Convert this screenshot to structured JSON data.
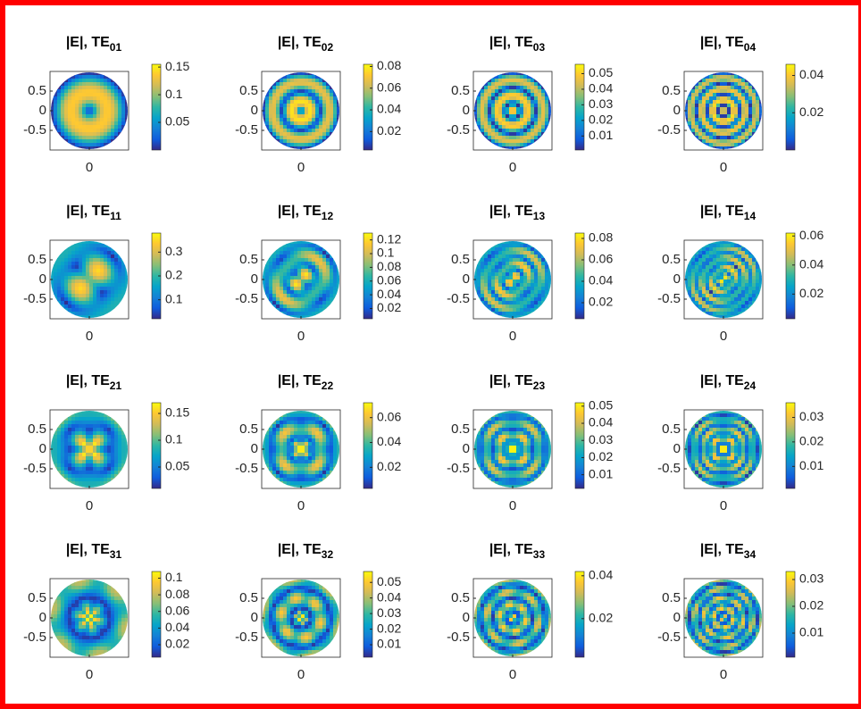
{
  "chart_data": [
    {
      "type": "heatmap",
      "title": "|E|, TE",
      "subscript": "01",
      "xlim": [
        -1,
        1
      ],
      "ylim": [
        -1,
        1
      ],
      "xticks": [
        0
      ],
      "yticks": [
        -0.5,
        0,
        0.5
      ],
      "clim": [
        0,
        0.155
      ],
      "cticks": [
        0.05,
        0.1,
        0.15
      ]
    },
    {
      "type": "heatmap",
      "title": "|E|, TE",
      "subscript": "02",
      "xlim": [
        -1,
        1
      ],
      "ylim": [
        -1,
        1
      ],
      "xticks": [
        0
      ],
      "yticks": [
        -0.5,
        0,
        0.5
      ],
      "clim": [
        0.003,
        0.082
      ],
      "cticks": [
        0.02,
        0.04,
        0.06,
        0.08
      ]
    },
    {
      "type": "heatmap",
      "title": "|E|, TE",
      "subscript": "03",
      "xlim": [
        -1,
        1
      ],
      "ylim": [
        -1,
        1
      ],
      "xticks": [
        0
      ],
      "yticks": [
        -0.5,
        0,
        0.5
      ],
      "clim": [
        0.001,
        0.056
      ],
      "cticks": [
        0.01,
        0.02,
        0.03,
        0.04,
        0.05
      ]
    },
    {
      "type": "heatmap",
      "title": "|E|, TE",
      "subscript": "04",
      "xlim": [
        -1,
        1
      ],
      "ylim": [
        -1,
        1
      ],
      "xticks": [
        0
      ],
      "yticks": [
        -0.5,
        0,
        0.5
      ],
      "clim": [
        0,
        0.046
      ],
      "cticks": [
        0.02,
        0.04
      ]
    },
    {
      "type": "heatmap",
      "title": "|E|, TE",
      "subscript": "11",
      "xlim": [
        -1,
        1
      ],
      "ylim": [
        -1,
        1
      ],
      "xticks": [
        0
      ],
      "yticks": [
        -0.5,
        0,
        0.5
      ],
      "clim": [
        0.02,
        0.38
      ],
      "cticks": [
        0.1,
        0.2,
        0.3
      ]
    },
    {
      "type": "heatmap",
      "title": "|E|, TE",
      "subscript": "12",
      "xlim": [
        -1,
        1
      ],
      "ylim": [
        -1,
        1
      ],
      "xticks": [
        0
      ],
      "yticks": [
        -0.5,
        0,
        0.5
      ],
      "clim": [
        0.005,
        0.13
      ],
      "cticks": [
        0.02,
        0.04,
        0.06,
        0.08,
        0.1,
        0.12
      ]
    },
    {
      "type": "heatmap",
      "title": "|E|, TE",
      "subscript": "13",
      "xlim": [
        -1,
        1
      ],
      "ylim": [
        -1,
        1
      ],
      "xticks": [
        0
      ],
      "yticks": [
        -0.5,
        0,
        0.5
      ],
      "clim": [
        0.005,
        0.085
      ],
      "cticks": [
        0.02,
        0.04,
        0.06,
        0.08
      ]
    },
    {
      "type": "heatmap",
      "title": "|E|, TE",
      "subscript": "14",
      "xlim": [
        -1,
        1
      ],
      "ylim": [
        -1,
        1
      ],
      "xticks": [
        0
      ],
      "yticks": [
        -0.5,
        0,
        0.5
      ],
      "clim": [
        0.003,
        0.062
      ],
      "cticks": [
        0.02,
        0.04,
        0.06
      ]
    },
    {
      "type": "heatmap",
      "title": "|E|, TE",
      "subscript": "21",
      "xlim": [
        -1,
        1
      ],
      "ylim": [
        -1,
        1
      ],
      "xticks": [
        0
      ],
      "yticks": [
        -0.5,
        0,
        0.5
      ],
      "clim": [
        0.01,
        0.17
      ],
      "cticks": [
        0.05,
        0.1,
        0.15
      ]
    },
    {
      "type": "heatmap",
      "title": "|E|, TE",
      "subscript": "22",
      "xlim": [
        -1,
        1
      ],
      "ylim": [
        -1,
        1
      ],
      "xticks": [
        0
      ],
      "yticks": [
        -0.5,
        0,
        0.5
      ],
      "clim": [
        0.003,
        0.072
      ],
      "cticks": [
        0.02,
        0.04,
        0.06
      ]
    },
    {
      "type": "heatmap",
      "title": "|E|, TE",
      "subscript": "23",
      "xlim": [
        -1,
        1
      ],
      "ylim": [
        -1,
        1
      ],
      "xticks": [
        0
      ],
      "yticks": [
        -0.5,
        0,
        0.5
      ],
      "clim": [
        0.002,
        0.052
      ],
      "cticks": [
        0.01,
        0.02,
        0.03,
        0.04,
        0.05
      ]
    },
    {
      "type": "heatmap",
      "title": "|E|, TE",
      "subscript": "24",
      "xlim": [
        -1,
        1
      ],
      "ylim": [
        -1,
        1
      ],
      "xticks": [
        0
      ],
      "yticks": [
        -0.5,
        0,
        0.5
      ],
      "clim": [
        0.001,
        0.036
      ],
      "cticks": [
        0.01,
        0.02,
        0.03
      ]
    },
    {
      "type": "heatmap",
      "title": "|E|, TE",
      "subscript": "31",
      "xlim": [
        -1,
        1
      ],
      "ylim": [
        -1,
        1
      ],
      "xticks": [
        0
      ],
      "yticks": [
        -0.5,
        0,
        0.5
      ],
      "clim": [
        0.005,
        0.108
      ],
      "cticks": [
        0.02,
        0.04,
        0.06,
        0.08,
        0.1
      ]
    },
    {
      "type": "heatmap",
      "title": "|E|, TE",
      "subscript": "32",
      "xlim": [
        -1,
        1
      ],
      "ylim": [
        -1,
        1
      ],
      "xticks": [
        0
      ],
      "yticks": [
        -0.5,
        0,
        0.5
      ],
      "clim": [
        0.002,
        0.057
      ],
      "cticks": [
        0.01,
        0.02,
        0.03,
        0.04,
        0.05
      ]
    },
    {
      "type": "heatmap",
      "title": "|E|, TE",
      "subscript": "33",
      "xlim": [
        -1,
        1
      ],
      "ylim": [
        -1,
        1
      ],
      "xticks": [
        0
      ],
      "yticks": [
        -0.5,
        0,
        0.5
      ],
      "clim": [
        0.002,
        0.042
      ],
      "cticks": [
        0.02,
        0.04
      ]
    },
    {
      "type": "heatmap",
      "title": "|E|, TE",
      "subscript": "34",
      "xlim": [
        -1,
        1
      ],
      "ylim": [
        -1,
        1
      ],
      "xticks": [
        0
      ],
      "yticks": [
        -0.5,
        0,
        0.5
      ],
      "clim": [
        0.001,
        0.033
      ],
      "cticks": [
        0.01,
        0.02,
        0.03
      ]
    }
  ]
}
